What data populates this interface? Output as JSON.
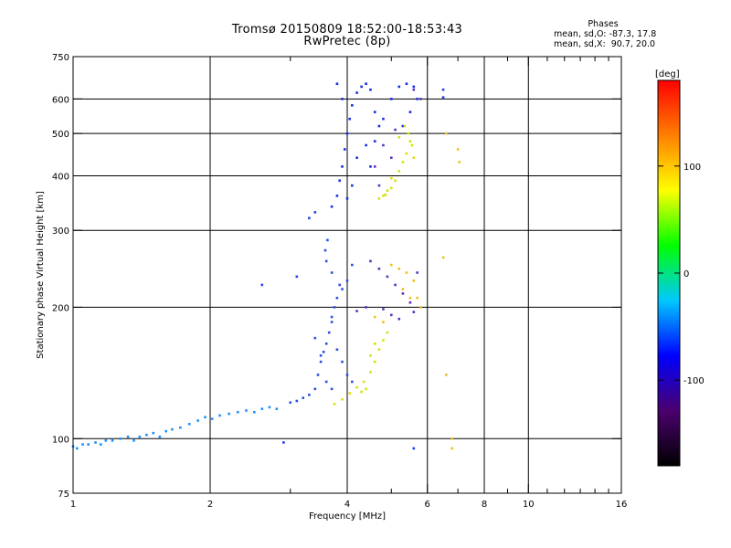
{
  "chart_data": {
    "type": "scatter",
    "title": "Tromsø 20150809 18:52:00-18:53:43",
    "subtitle": "RwPretec (8p)",
    "annotation": {
      "header": "Phases",
      "line_o": "mean, sd,O: -87.3, 17.8",
      "line_x": "mean, sd,X:  90.7, 20.0"
    },
    "xlabel": "Frequency [MHz]",
    "ylabel": "Stationary phase Virtual Height [km]",
    "x_scale": "log",
    "y_scale": "log",
    "xlim": [
      1,
      16
    ],
    "ylim": [
      75,
      750
    ],
    "x_major_ticks": [
      1,
      2,
      4,
      6,
      8,
      10,
      16
    ],
    "x_minor_ticks": [
      3,
      5,
      7,
      9,
      11,
      12,
      13,
      14,
      15
    ],
    "y_major_ticks": [
      75,
      100,
      200,
      300,
      400,
      500,
      600,
      750
    ],
    "grid": true,
    "colorbar": {
      "label": "[deg]",
      "range": [
        -180,
        180
      ],
      "ticks": [
        100,
        0,
        -100
      ],
      "colors": [
        "#000000",
        "#4b006e",
        "#0000ff",
        "#00c8ff",
        "#00ff00",
        "#ffff00",
        "#ff8000",
        "#ff0000"
      ]
    },
    "series": [
      {
        "color": "#1e90ff",
        "points": [
          [
            1.0,
            96
          ],
          [
            1.02,
            95
          ],
          [
            1.05,
            97
          ],
          [
            1.08,
            97
          ],
          [
            1.12,
            98
          ],
          [
            1.15,
            97
          ],
          [
            1.18,
            99
          ],
          [
            1.22,
            99
          ],
          [
            1.27,
            100
          ],
          [
            1.32,
            101
          ],
          [
            1.36,
            99
          ],
          [
            1.4,
            101
          ],
          [
            1.45,
            102
          ],
          [
            1.5,
            103
          ],
          [
            1.55,
            101
          ],
          [
            1.6,
            104
          ],
          [
            1.65,
            105
          ],
          [
            1.72,
            106
          ],
          [
            1.8,
            108
          ],
          [
            1.88,
            110
          ],
          [
            1.95,
            112
          ],
          [
            2.02,
            111
          ],
          [
            2.1,
            113
          ],
          [
            2.2,
            114
          ],
          [
            2.3,
            115
          ],
          [
            2.4,
            116
          ],
          [
            2.5,
            115
          ],
          [
            2.6,
            117
          ],
          [
            2.7,
            118
          ],
          [
            2.8,
            117
          ]
        ]
      },
      {
        "color": "#2a50e8",
        "points": [
          [
            3.0,
            121
          ],
          [
            3.1,
            122
          ],
          [
            3.2,
            124
          ],
          [
            3.3,
            126
          ],
          [
            3.4,
            130
          ],
          [
            3.45,
            140
          ],
          [
            3.5,
            150
          ],
          [
            3.55,
            158
          ],
          [
            3.6,
            165
          ],
          [
            3.65,
            175
          ],
          [
            3.7,
            185
          ],
          [
            3.75,
            200
          ],
          [
            3.8,
            210
          ],
          [
            3.85,
            225
          ],
          [
            3.7,
            240
          ],
          [
            3.6,
            255
          ],
          [
            3.58,
            270
          ],
          [
            3.62,
            285
          ],
          [
            3.7,
            190
          ],
          [
            3.9,
            220
          ],
          [
            4.0,
            230
          ],
          [
            4.1,
            250
          ],
          [
            3.8,
            160
          ],
          [
            3.9,
            150
          ],
          [
            4.0,
            140
          ],
          [
            4.1,
            135
          ],
          [
            3.7,
            130
          ],
          [
            3.6,
            135
          ],
          [
            3.5,
            155
          ],
          [
            3.4,
            170
          ]
        ]
      },
      {
        "color": "#1a2ee0",
        "points": [
          [
            3.7,
            340
          ],
          [
            3.8,
            360
          ],
          [
            3.85,
            390
          ],
          [
            3.9,
            420
          ],
          [
            3.95,
            460
          ],
          [
            4.0,
            500
          ],
          [
            4.05,
            540
          ],
          [
            4.1,
            580
          ],
          [
            4.2,
            620
          ],
          [
            4.3,
            640
          ],
          [
            4.4,
            650
          ],
          [
            4.5,
            630
          ],
          [
            3.8,
            650
          ],
          [
            3.9,
            600
          ],
          [
            4.6,
            560
          ],
          [
            4.7,
            520
          ],
          [
            4.4,
            470
          ],
          [
            4.2,
            440
          ],
          [
            4.1,
            380
          ],
          [
            4.0,
            355
          ],
          [
            4.5,
            420
          ],
          [
            4.6,
            480
          ],
          [
            4.8,
            540
          ],
          [
            5.0,
            600
          ],
          [
            5.2,
            640
          ],
          [
            5.4,
            650
          ],
          [
            5.6,
            640
          ],
          [
            5.7,
            600
          ],
          [
            5.5,
            560
          ],
          [
            5.3,
            520
          ]
        ]
      },
      {
        "color": "#6030c0",
        "points": [
          [
            4.5,
            255
          ],
          [
            4.7,
            245
          ],
          [
            4.9,
            235
          ],
          [
            5.1,
            225
          ],
          [
            5.3,
            215
          ],
          [
            5.5,
            205
          ],
          [
            5.6,
            195
          ],
          [
            4.8,
            198
          ],
          [
            5.0,
            192
          ],
          [
            5.2,
            188
          ],
          [
            4.2,
            196
          ],
          [
            4.4,
            200
          ],
          [
            5.7,
            240
          ],
          [
            5.8,
            600
          ],
          [
            5.6,
            630
          ],
          [
            4.6,
            420
          ],
          [
            4.8,
            470
          ],
          [
            5.1,
            510
          ],
          [
            5.0,
            440
          ],
          [
            4.7,
            380
          ]
        ]
      },
      {
        "color": "#d8e010",
        "points": [
          [
            3.75,
            120
          ],
          [
            3.9,
            123
          ],
          [
            4.05,
            127
          ],
          [
            4.2,
            131
          ],
          [
            4.35,
            135
          ],
          [
            4.5,
            142
          ],
          [
            4.6,
            150
          ],
          [
            4.7,
            160
          ],
          [
            4.8,
            168
          ],
          [
            4.9,
            175
          ],
          [
            4.6,
            165
          ],
          [
            4.5,
            155
          ],
          [
            4.4,
            130
          ],
          [
            4.3,
            128
          ],
          [
            4.7,
            355
          ],
          [
            4.85,
            362
          ],
          [
            5.0,
            375
          ],
          [
            5.1,
            390
          ],
          [
            5.2,
            410
          ],
          [
            5.3,
            430
          ],
          [
            5.4,
            450
          ],
          [
            5.5,
            480
          ],
          [
            5.45,
            500
          ],
          [
            5.35,
            520
          ],
          [
            5.2,
            490
          ],
          [
            5.0,
            395
          ],
          [
            4.9,
            370
          ],
          [
            4.8,
            360
          ],
          [
            5.6,
            440
          ],
          [
            5.55,
            470
          ]
        ]
      },
      {
        "color": "#f0c020",
        "points": [
          [
            5.0,
            250
          ],
          [
            5.2,
            245
          ],
          [
            5.4,
            240
          ],
          [
            5.6,
            230
          ],
          [
            5.7,
            210
          ],
          [
            5.8,
            200
          ],
          [
            5.5,
            210
          ],
          [
            5.3,
            220
          ],
          [
            4.6,
            190
          ],
          [
            4.8,
            185
          ],
          [
            6.6,
            500
          ],
          [
            7.0,
            460
          ],
          [
            7.05,
            430
          ],
          [
            6.8,
            95
          ],
          [
            6.6,
            140
          ],
          [
            6.8,
            100
          ],
          [
            6.5,
            260
          ]
        ]
      },
      {
        "color": "#2040f0",
        "points": [
          [
            2.6,
            225
          ],
          [
            3.1,
            235
          ],
          [
            5.6,
            95
          ],
          [
            2.9,
            98
          ],
          [
            3.3,
            320
          ],
          [
            3.4,
            330
          ],
          [
            6.5,
            605
          ],
          [
            6.5,
            630
          ]
        ]
      }
    ]
  }
}
